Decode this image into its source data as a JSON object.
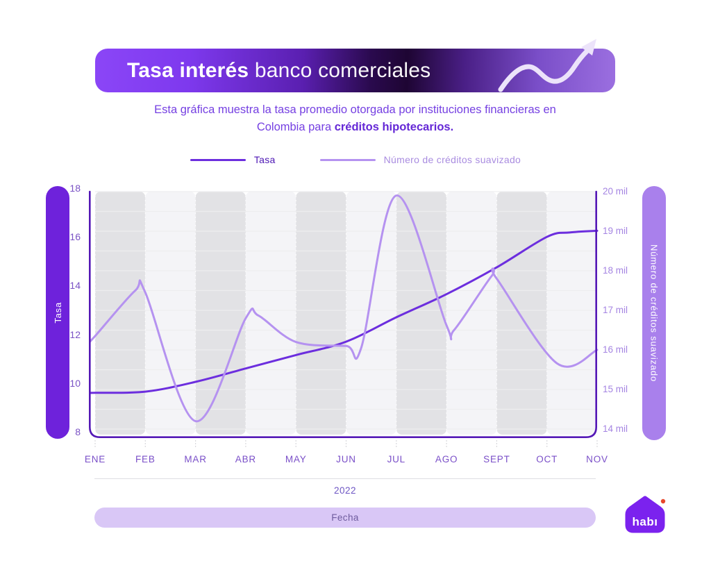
{
  "banner": {
    "title_bold": "Tasa interés",
    "title_regular": " banco comerciales",
    "arrow_color": "#ECE3FA"
  },
  "subtitle": {
    "line1": "Esta gráfica muestra la tasa promedio otorgada por instituciones financieras en",
    "line2_regular": "Colombia para ",
    "line2_bold": "créditos hipotecarios."
  },
  "chart_data": {
    "type": "line",
    "title": "Tasa interés banco comerciales",
    "legend_position": "top-center",
    "categories": [
      "ENE",
      "FEB",
      "MAR",
      "ABR",
      "MAY",
      "JUN",
      "JUL",
      "AGO",
      "SEPT",
      "OCT",
      "NOV"
    ],
    "x_year": "2022",
    "xlabel": "Fecha",
    "left_axis": {
      "label": "Tasa",
      "range": [
        8,
        18
      ],
      "ticks": [
        18,
        16,
        14,
        12,
        10,
        8
      ],
      "pill_color": "#6E22DB",
      "tick_color": "#7A52C5"
    },
    "right_axis": {
      "label": "Número de créditos suavizado",
      "range": [
        14,
        20
      ],
      "ticks": [
        "20 mil",
        "19 mil",
        "18 mil",
        "17 mil",
        "16 mil",
        "15 mil",
        "14 mil"
      ],
      "pill_color": "#A980EC",
      "tick_color": "#A585E2"
    },
    "series": [
      {
        "name": "Tasa",
        "axis": "left",
        "color": "#6C2EDE",
        "label_color": "#4C16B4",
        "monthly_values": [
          9.6,
          9.65,
          10.05,
          10.6,
          11.15,
          11.7,
          12.7,
          13.65,
          14.75,
          16.0,
          16.25
        ],
        "smooth_points": [
          [
            -0.12,
            9.6
          ],
          [
            0,
            9.6
          ],
          [
            1,
            9.65
          ],
          [
            2,
            10.05
          ],
          [
            3,
            10.6
          ],
          [
            4,
            11.15
          ],
          [
            5,
            11.7
          ],
          [
            6,
            12.7
          ],
          [
            7,
            13.65
          ],
          [
            8,
            14.75
          ],
          [
            9,
            16.0
          ],
          [
            9.45,
            16.18
          ],
          [
            10,
            16.25
          ]
        ]
      },
      {
        "name": "Número de créditos suavizado",
        "axis": "right",
        "color": "#B592F0",
        "label_color": "#A98CE0",
        "monthly_values": [
          16.35,
          17.45,
          14.2,
          16.8,
          16.2,
          16.1,
          19.9,
          16.6,
          17.8,
          15.75,
          16.0
        ],
        "smooth_points": [
          [
            -0.12,
            16.2
          ],
          [
            0,
            16.35
          ],
          [
            0.8,
            17.5
          ],
          [
            1,
            17.45
          ],
          [
            2,
            14.2
          ],
          [
            3,
            16.8
          ],
          [
            3.25,
            16.87
          ],
          [
            4,
            16.2
          ],
          [
            5,
            16.1
          ],
          [
            5.3,
            16.05
          ],
          [
            6,
            19.9
          ],
          [
            7,
            16.62
          ],
          [
            7.15,
            16.5
          ],
          [
            7.9,
            17.87
          ],
          [
            8,
            17.8
          ],
          [
            9.2,
            15.66
          ],
          [
            10,
            16.0
          ]
        ]
      }
    ],
    "style": {
      "stripe_dark": "#E2E2E5",
      "stripe_light": "#F4F4F7",
      "grid_line": "#EDEDEF",
      "month_boundary_dash": "rgba(255,255,255,0.92)",
      "frame": "#5418B6",
      "below_tick": "#D8D8DC",
      "month_label_color": "#7A4FC8",
      "year_color": "#6E56C4",
      "fecha_pill_bg": "#D9C7F6",
      "fecha_text_color": "#6F5C9E"
    }
  },
  "logo": {
    "brand": "habı",
    "house_color": "#7B22EE",
    "dot_color": "#E8472B"
  }
}
